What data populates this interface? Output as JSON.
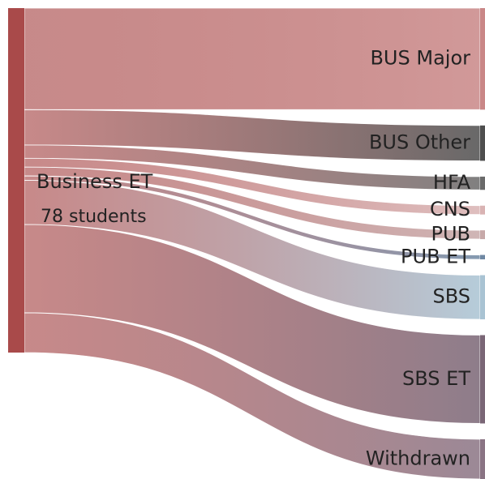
{
  "chart_data": {
    "type": "sankey",
    "source": "Business ET",
    "source_note": "78 students",
    "source_color": "#a94a4a",
    "targets": [
      {
        "name": "BUS Major",
        "color": "#c98787",
        "value": 23
      },
      {
        "name": "BUS Other",
        "color": "#4e4e4e",
        "value": 8
      },
      {
        "name": "HFA",
        "color": "#6a6a6a",
        "value": 3
      },
      {
        "name": "CNS",
        "color": "#d9b3b3",
        "value": 2
      },
      {
        "name": "PUB",
        "color": "#c7a9a9",
        "value": 2
      },
      {
        "name": "PUB ET",
        "color": "#6f88a3",
        "value": 1
      },
      {
        "name": "SBS",
        "color": "#a9c3d3",
        "value": 10
      },
      {
        "name": "SBS ET",
        "color": "#7a6676",
        "value": 20
      },
      {
        "name": "Withdrawn",
        "color": "#8a7484",
        "value": 9
      }
    ]
  }
}
